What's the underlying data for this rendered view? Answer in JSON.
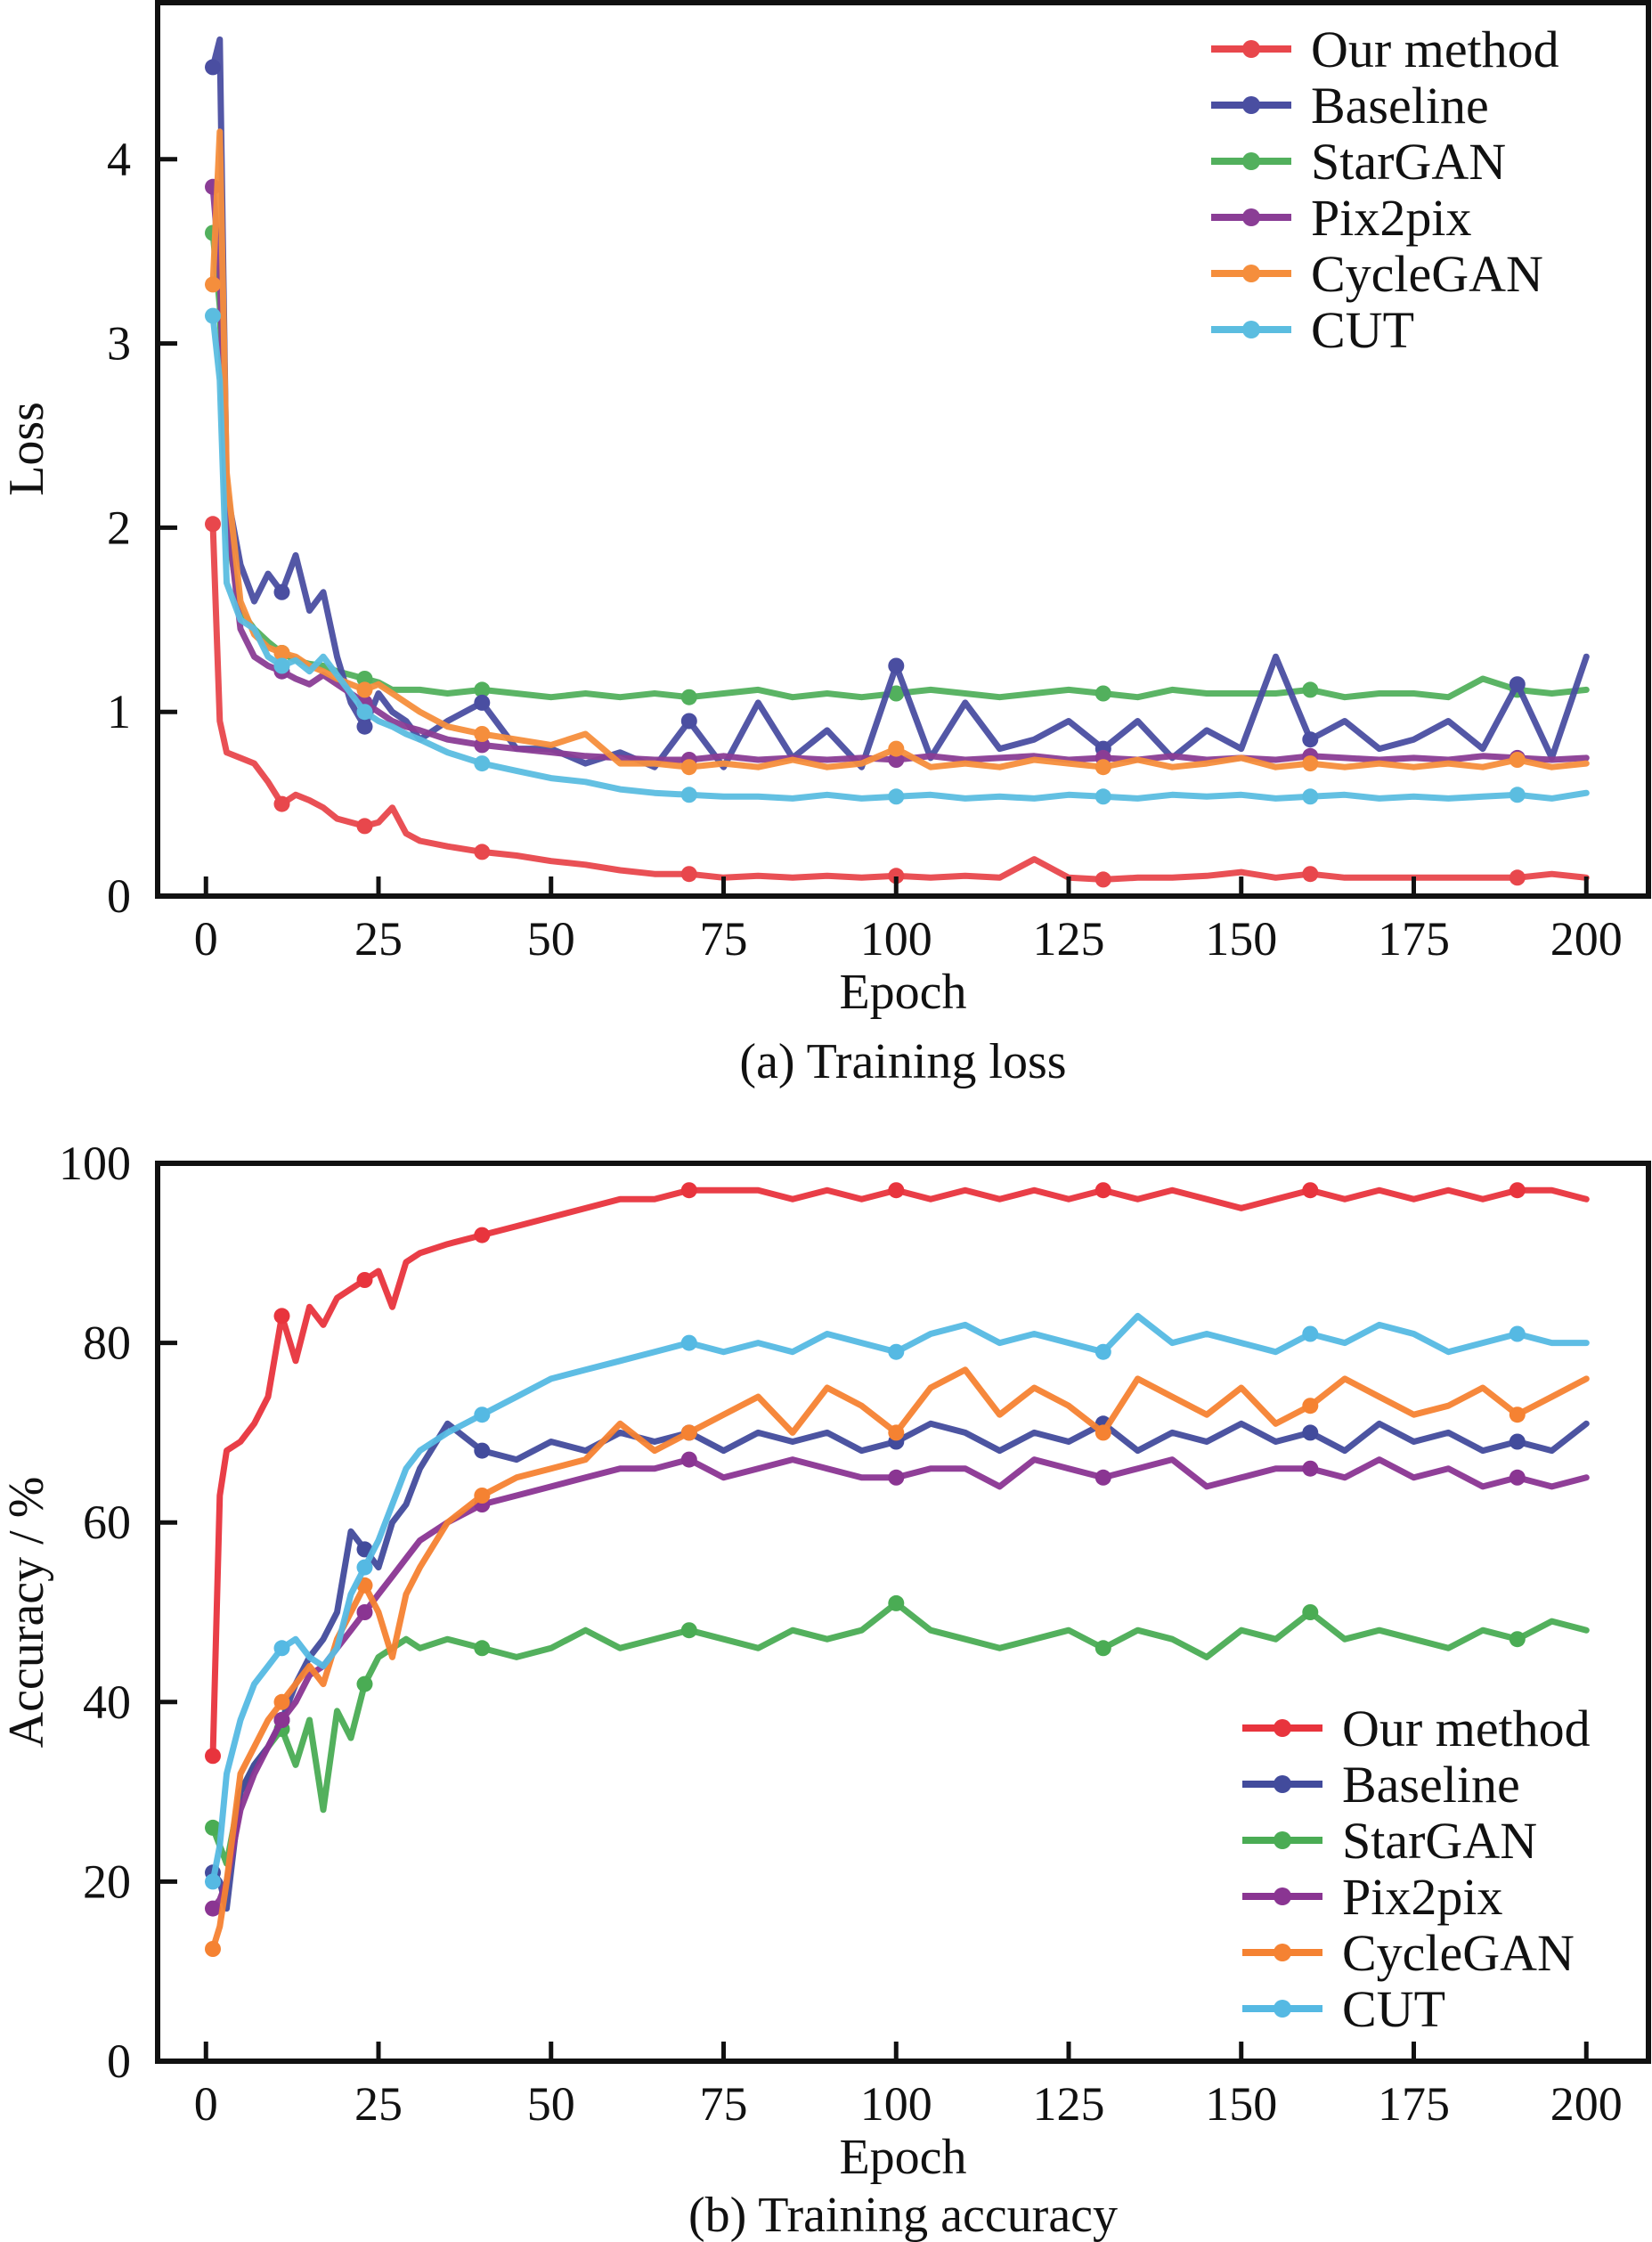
{
  "chart_data": [
    {
      "type": "line",
      "title": "",
      "caption": "(a) Training loss",
      "xlabel": "Epoch",
      "ylabel": "Loss",
      "xlim": [
        -7,
        209
      ],
      "ylim": [
        0,
        4.85
      ],
      "xticks": [
        0,
        25,
        50,
        75,
        100,
        125,
        150,
        175,
        200
      ],
      "xtick_labels": [
        "0",
        "25",
        "50",
        "75",
        "100",
        "125",
        "150",
        "175",
        "200"
      ],
      "yticks": [
        0,
        1,
        2,
        3,
        4
      ],
      "ytick_labels": [
        "0",
        "1",
        "2",
        "3",
        "4"
      ],
      "grid": false,
      "legend_position": "top-right",
      "x": [
        1,
        2,
        3,
        5,
        7,
        9,
        11,
        13,
        15,
        17,
        19,
        21,
        23,
        25,
        27,
        29,
        31,
        35,
        40,
        45,
        50,
        55,
        60,
        65,
        70,
        75,
        80,
        85,
        90,
        95,
        100,
        105,
        110,
        115,
        120,
        125,
        130,
        135,
        140,
        145,
        150,
        155,
        160,
        165,
        170,
        175,
        180,
        185,
        190,
        195,
        200
      ],
      "series": [
        {
          "name": "Our method",
          "color": "#e8474c",
          "values": [
            2.02,
            0.95,
            0.78,
            0.75,
            0.72,
            0.62,
            0.5,
            0.55,
            0.52,
            0.48,
            0.42,
            0.4,
            0.38,
            0.4,
            0.48,
            0.34,
            0.3,
            0.27,
            0.24,
            0.22,
            0.19,
            0.17,
            0.14,
            0.12,
            0.12,
            0.1,
            0.11,
            0.1,
            0.11,
            0.1,
            0.11,
            0.1,
            0.11,
            0.1,
            0.2,
            0.1,
            0.09,
            0.1,
            0.1,
            0.11,
            0.13,
            0.1,
            0.12,
            0.1,
            0.1,
            0.1,
            0.1,
            0.1,
            0.1,
            0.12,
            0.1
          ]
        },
        {
          "name": "Baseline",
          "color": "#4a4ea1",
          "values": [
            4.5,
            4.65,
            2.2,
            1.8,
            1.6,
            1.75,
            1.65,
            1.85,
            1.55,
            1.65,
            1.3,
            1.05,
            0.92,
            1.1,
            1.0,
            0.95,
            0.85,
            0.95,
            1.05,
            0.8,
            0.8,
            0.72,
            0.78,
            0.7,
            0.95,
            0.7,
            1.05,
            0.75,
            0.9,
            0.7,
            1.25,
            0.75,
            1.05,
            0.8,
            0.85,
            0.95,
            0.8,
            0.95,
            0.75,
            0.9,
            0.8,
            1.3,
            0.85,
            0.95,
            0.8,
            0.85,
            0.95,
            0.8,
            1.15,
            0.75,
            1.3
          ]
        },
        {
          "name": "StarGAN",
          "color": "#52b05d",
          "values": [
            3.6,
            3.2,
            2.0,
            1.55,
            1.45,
            1.38,
            1.32,
            1.28,
            1.26,
            1.25,
            1.22,
            1.2,
            1.18,
            1.16,
            1.12,
            1.12,
            1.12,
            1.1,
            1.12,
            1.1,
            1.08,
            1.1,
            1.08,
            1.1,
            1.08,
            1.1,
            1.12,
            1.08,
            1.1,
            1.08,
            1.1,
            1.12,
            1.1,
            1.08,
            1.1,
            1.12,
            1.1,
            1.08,
            1.12,
            1.1,
            1.1,
            1.1,
            1.12,
            1.08,
            1.1,
            1.1,
            1.08,
            1.18,
            1.12,
            1.1,
            1.12
          ]
        },
        {
          "name": "Pix2pix",
          "color": "#8a3d95",
          "values": [
            3.85,
            3.4,
            2.1,
            1.45,
            1.3,
            1.25,
            1.22,
            1.18,
            1.15,
            1.2,
            1.15,
            1.1,
            1.05,
            1.0,
            0.95,
            0.92,
            0.9,
            0.85,
            0.82,
            0.8,
            0.78,
            0.76,
            0.75,
            0.74,
            0.74,
            0.76,
            0.74,
            0.75,
            0.74,
            0.75,
            0.74,
            0.76,
            0.74,
            0.75,
            0.76,
            0.74,
            0.75,
            0.74,
            0.76,
            0.74,
            0.75,
            0.74,
            0.76,
            0.75,
            0.74,
            0.75,
            0.74,
            0.76,
            0.75,
            0.74,
            0.75
          ]
        },
        {
          "name": "CycleGAN",
          "color": "#f58e3c",
          "values": [
            3.32,
            4.15,
            2.3,
            1.6,
            1.42,
            1.35,
            1.32,
            1.3,
            1.25,
            1.22,
            1.18,
            1.15,
            1.12,
            1.15,
            1.1,
            1.05,
            1.0,
            0.92,
            0.88,
            0.85,
            0.82,
            0.88,
            0.72,
            0.72,
            0.7,
            0.72,
            0.7,
            0.74,
            0.7,
            0.72,
            0.8,
            0.7,
            0.72,
            0.7,
            0.74,
            0.72,
            0.7,
            0.74,
            0.7,
            0.72,
            0.75,
            0.7,
            0.72,
            0.7,
            0.72,
            0.7,
            0.72,
            0.7,
            0.74,
            0.7,
            0.72
          ]
        },
        {
          "name": "CUT",
          "color": "#5bbde0",
          "values": [
            3.15,
            2.8,
            1.7,
            1.5,
            1.45,
            1.3,
            1.25,
            1.28,
            1.22,
            1.3,
            1.2,
            1.1,
            1.0,
            0.95,
            0.92,
            0.88,
            0.85,
            0.78,
            0.72,
            0.68,
            0.64,
            0.62,
            0.58,
            0.56,
            0.55,
            0.54,
            0.54,
            0.53,
            0.55,
            0.53,
            0.54,
            0.55,
            0.53,
            0.54,
            0.53,
            0.55,
            0.54,
            0.53,
            0.55,
            0.54,
            0.55,
            0.53,
            0.54,
            0.55,
            0.53,
            0.54,
            0.53,
            0.54,
            0.55,
            0.53,
            0.56
          ]
        }
      ]
    },
    {
      "type": "line",
      "title": "",
      "caption": "(b) Training accuracy",
      "xlabel": "Epoch",
      "ylabel": "Accuracy / %",
      "xlim": [
        -7,
        209
      ],
      "ylim": [
        0,
        100
      ],
      "xticks": [
        0,
        25,
        50,
        75,
        100,
        125,
        150,
        175,
        200
      ],
      "xtick_labels": [
        "0",
        "25",
        "50",
        "75",
        "100",
        "125",
        "150",
        "175",
        "200"
      ],
      "yticks": [
        0,
        20,
        40,
        60,
        80,
        100
      ],
      "ytick_labels": [
        "0",
        "20",
        "40",
        "60",
        "80",
        "100"
      ],
      "grid": false,
      "legend_position": "bottom-right",
      "x": [
        1,
        2,
        3,
        5,
        7,
        9,
        11,
        13,
        15,
        17,
        19,
        21,
        23,
        25,
        27,
        29,
        31,
        35,
        40,
        45,
        50,
        55,
        60,
        65,
        70,
        75,
        80,
        85,
        90,
        95,
        100,
        105,
        110,
        115,
        120,
        125,
        130,
        135,
        140,
        145,
        150,
        155,
        160,
        165,
        170,
        175,
        180,
        185,
        190,
        195,
        200
      ],
      "series": [
        {
          "name": "Our method",
          "color": "#e8343d",
          "values": [
            34,
            63,
            68,
            69,
            71,
            74,
            83,
            78,
            84,
            82,
            85,
            86,
            87,
            88,
            84,
            89,
            90,
            91,
            92,
            93,
            94,
            95,
            96,
            96,
            97,
            97,
            97,
            96,
            97,
            96,
            97,
            96,
            97,
            96,
            97,
            96,
            97,
            96,
            97,
            96,
            95,
            96,
            97,
            96,
            97,
            96,
            97,
            96,
            97,
            97,
            96
          ]
        },
        {
          "name": "Baseline",
          "color": "#424b9c",
          "values": [
            21,
            20,
            17,
            30,
            33,
            35,
            38,
            42,
            45,
            47,
            50,
            59,
            57,
            55,
            60,
            62,
            66,
            71,
            68,
            67,
            69,
            68,
            70,
            69,
            70,
            68,
            70,
            69,
            70,
            68,
            69,
            71,
            70,
            68,
            70,
            69,
            71,
            68,
            70,
            69,
            71,
            69,
            70,
            68,
            71,
            69,
            70,
            68,
            69,
            68,
            71
          ]
        },
        {
          "name": "StarGAN",
          "color": "#4aac54",
          "values": [
            26,
            24,
            22,
            30,
            33,
            35,
            37,
            33,
            38,
            28,
            39,
            36,
            42,
            45,
            46,
            47,
            46,
            47,
            46,
            45,
            46,
            48,
            46,
            47,
            48,
            47,
            46,
            48,
            47,
            48,
            51,
            48,
            47,
            46,
            47,
            48,
            46,
            48,
            47,
            45,
            48,
            47,
            50,
            47,
            48,
            47,
            46,
            48,
            47,
            49,
            48
          ]
        },
        {
          "name": "Pix2pix",
          "color": "#8a3592",
          "values": [
            17,
            18,
            20,
            28,
            32,
            35,
            38,
            40,
            43,
            44,
            46,
            48,
            50,
            52,
            54,
            56,
            58,
            60,
            62,
            63,
            64,
            65,
            66,
            66,
            67,
            65,
            66,
            67,
            66,
            65,
            65,
            66,
            66,
            64,
            67,
            66,
            65,
            66,
            67,
            64,
            65,
            66,
            66,
            65,
            67,
            65,
            66,
            64,
            65,
            64,
            65
          ]
        },
        {
          "name": "CycleGAN",
          "color": "#f58232",
          "values": [
            12.5,
            15,
            20,
            32,
            35,
            38,
            40,
            42,
            44,
            42,
            47,
            50,
            53,
            50,
            45,
            52,
            55,
            60,
            63,
            65,
            66,
            67,
            71,
            68,
            70,
            72,
            74,
            70,
            75,
            73,
            70,
            75,
            77,
            72,
            75,
            73,
            70,
            76,
            74,
            72,
            75,
            71,
            73,
            76,
            74,
            72,
            73,
            75,
            72,
            74,
            76
          ]
        },
        {
          "name": "CUT",
          "color": "#55b9e3",
          "values": [
            20,
            24,
            32,
            38,
            42,
            44,
            46,
            47,
            45,
            44,
            46,
            52,
            55,
            58,
            62,
            66,
            68,
            70,
            72,
            74,
            76,
            77,
            78,
            79,
            80,
            79,
            80,
            79,
            81,
            80,
            79,
            81,
            82,
            80,
            81,
            80,
            79,
            83,
            80,
            81,
            80,
            79,
            81,
            80,
            82,
            81,
            79,
            80,
            81,
            80,
            80
          ]
        }
      ]
    }
  ]
}
